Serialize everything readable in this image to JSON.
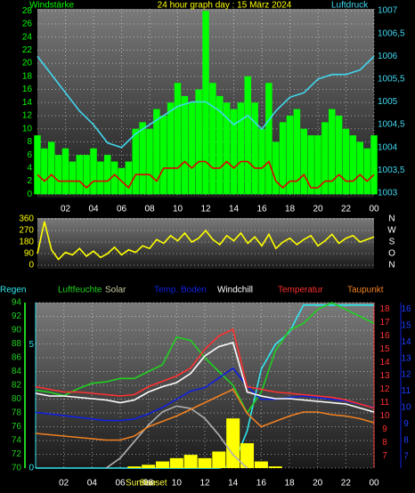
{
  "chart_data": [
    {
      "type": "combo",
      "title": "24 hour graph day : 15 März 2024",
      "grid": true,
      "xlim": [
        0,
        24
      ],
      "xticks": [
        {
          "value": 2,
          "label": "02"
        },
        {
          "value": 4,
          "label": "04"
        },
        {
          "value": 6,
          "label": "06"
        },
        {
          "value": 8,
          "label": "08"
        },
        10,
        12,
        14,
        16,
        18,
        20,
        22,
        {
          "value": 24,
          "label": "00"
        }
      ],
      "ylim": [
        -0.5,
        28.3
      ],
      "yticks": [
        0,
        2,
        4,
        6,
        8,
        10,
        12,
        14,
        16,
        18,
        20,
        22,
        24,
        26,
        28
      ],
      "y2lim": [
        1002.9,
        1007.04
      ],
      "y2ticks": [
        1003,
        {
          "value": 1003.5,
          "label": "1003,5"
        },
        1004,
        {
          "value": 1004.5,
          "label": "1004,5"
        },
        1005,
        {
          "value": 1005.5,
          "label": "1005,5"
        },
        1006,
        {
          "value": 1006.5,
          "label": "1006,5"
        },
        1007
      ],
      "series": [
        {
          "name": "Windstärke",
          "type": "bar",
          "color": "#00ff00",
          "x": [
            0,
            0.5,
            1,
            1.5,
            2,
            2.5,
            3,
            3.5,
            4,
            4.5,
            5,
            5.5,
            6,
            6.5,
            7,
            7.5,
            8,
            8.5,
            9,
            9.5,
            10,
            10.5,
            11,
            11.5,
            12,
            12.5,
            13,
            13.5,
            14,
            14.5,
            15,
            15.5,
            16,
            16.5,
            17,
            17.5,
            18,
            18.5,
            19,
            19.5,
            20,
            20.5,
            21,
            21.5,
            22,
            22.5,
            23,
            23.5,
            24
          ],
          "values": [
            9,
            7,
            8,
            6,
            7,
            5,
            6,
            6,
            7,
            5,
            6,
            5,
            4,
            5,
            10,
            11,
            10,
            13,
            12,
            14,
            17,
            15,
            14,
            16,
            28,
            17,
            15,
            14,
            13,
            14,
            18,
            14,
            10,
            17,
            8,
            11,
            12,
            13,
            10,
            9,
            9,
            11,
            13,
            12,
            10,
            9,
            8,
            7,
            9
          ]
        },
        {
          "type": "line",
          "color": "#e00000",
          "x": [
            0,
            0.5,
            1,
            1.5,
            2,
            2.5,
            3,
            3.5,
            4,
            4.5,
            5,
            5.5,
            6,
            6.5,
            7,
            7.5,
            8,
            8.5,
            9,
            9.5,
            10,
            10.5,
            11,
            11.5,
            12,
            12.5,
            13,
            13.5,
            14,
            14.5,
            15,
            15.5,
            16,
            16.5,
            17,
            17.5,
            18,
            18.5,
            19,
            19.5,
            20,
            20.5,
            21,
            21.5,
            22,
            22.5,
            23,
            23.5,
            24
          ],
          "values": [
            3,
            2,
            3,
            2,
            2,
            2,
            2,
            1,
            2,
            2,
            2,
            3,
            2,
            1,
            3,
            3,
            3,
            2,
            4,
            4,
            4,
            5,
            4,
            5,
            5,
            4,
            4,
            5,
            4,
            5,
            5,
            4,
            4,
            5,
            2,
            1,
            2,
            2,
            3,
            1,
            1,
            2,
            2,
            3,
            2,
            2,
            3,
            2,
            3
          ]
        },
        {
          "name": "Luftdruck",
          "type": "line",
          "axis": "y2",
          "color": "#40d8f0",
          "x": [
            0,
            1,
            2,
            3,
            4,
            5,
            6,
            7,
            8,
            9,
            10,
            11,
            12,
            13,
            14,
            15,
            16,
            17,
            18,
            19,
            20,
            21,
            22,
            23,
            24
          ],
          "values": [
            1006.0,
            1005.6,
            1005.2,
            1004.8,
            1004.5,
            1004.1,
            1004.0,
            1004.3,
            1004.5,
            1004.7,
            1004.9,
            1005.0,
            1005.0,
            1004.8,
            1004.5,
            1004.7,
            1004.4,
            1004.8,
            1005.1,
            1005.2,
            1005.5,
            1005.6,
            1005.6,
            1005.7,
            1006.0
          ]
        }
      ]
    },
    {
      "type": "combo",
      "grid": true,
      "xlim": [
        0,
        24
      ],
      "ylim": [
        0,
        360
      ],
      "yticks": [
        0,
        90,
        180,
        270,
        360
      ],
      "y2ticks": [
        {
          "value": 0,
          "label": "N"
        },
        {
          "value": 90,
          "label": "O"
        },
        {
          "value": 180,
          "label": "S"
        },
        {
          "value": 270,
          "label": "W"
        },
        {
          "value": 360,
          "label": "N"
        }
      ],
      "series": [
        {
          "type": "line",
          "color": "#ffff00",
          "x": [
            0,
            0.5,
            1,
            1.5,
            2,
            2.5,
            3,
            3.5,
            4,
            4.5,
            5,
            5.5,
            6,
            6.5,
            7,
            7.5,
            8,
            8.5,
            9,
            9.5,
            10,
            10.5,
            11,
            11.5,
            12,
            12.5,
            13,
            13.5,
            14,
            14.5,
            15,
            15.5,
            16,
            16.5,
            17,
            17.5,
            18,
            18.5,
            19,
            19.5,
            20,
            20.5,
            21,
            21.5,
            22,
            22.5,
            23,
            23.5,
            24
          ],
          "values": [
            90,
            340,
            120,
            45,
            100,
            80,
            130,
            70,
            110,
            60,
            90,
            140,
            80,
            120,
            100,
            150,
            130,
            200,
            170,
            230,
            190,
            250,
            180,
            210,
            270,
            200,
            160,
            230,
            190,
            250,
            170,
            220,
            150,
            240,
            130,
            180,
            210,
            160,
            200,
            230,
            150,
            190,
            240,
            170,
            210,
            230,
            180,
            200,
            220
          ]
        }
      ]
    },
    {
      "type": "combo",
      "grid": true,
      "xlim": [
        0,
        24
      ],
      "xticks": [
        {
          "value": 2,
          "label": "02"
        },
        {
          "value": 4,
          "label": "04"
        },
        {
          "value": 6,
          "label": "06"
        },
        {
          "value": 8,
          "label": "08"
        },
        10,
        12,
        14,
        16,
        18,
        20,
        22,
        {
          "value": 24,
          "label": "00"
        }
      ],
      "sunrise_label": "Sunrise",
      "sunset_label": "Sunset",
      "ylim": [
        70,
        94
      ],
      "yticks": [
        70,
        72,
        74,
        76,
        78,
        80,
        82,
        84,
        86,
        88,
        90,
        92,
        94
      ],
      "y2lim": [
        6.1,
        18.5
      ],
      "y2ticks": [
        7,
        8,
        9,
        10,
        11,
        12,
        13,
        14,
        15,
        16,
        17,
        18
      ],
      "y3lim": [
        6.3,
        16.4
      ],
      "y3ticks": [
        7,
        8,
        9,
        10,
        11,
        12,
        13,
        14,
        15,
        16
      ],
      "y4lim": [
        0,
        6.7
      ],
      "y4ticks": [
        0,
        5
      ],
      "y5lim": [
        0,
        1000
      ],
      "series": [
        {
          "name": "Regen",
          "type": "line",
          "axis": "y4",
          "color": "#30e8f0",
          "x": [
            0,
            1,
            2,
            3,
            4,
            5,
            6,
            7,
            8,
            9,
            10,
            11,
            12,
            13,
            14,
            15,
            16,
            17,
            18,
            19,
            20,
            21,
            22,
            23,
            24
          ],
          "values": [
            0,
            0,
            0,
            0,
            0,
            0,
            0,
            0,
            0,
            0,
            0,
            0,
            0,
            0,
            0.1,
            1.5,
            4,
            5,
            5.5,
            6.6,
            6.6,
            6.6,
            6.6,
            6.6,
            6.6
          ]
        },
        {
          "name": "Luftfeuchte",
          "type": "line",
          "color": "#20d020",
          "x": [
            0,
            1,
            2,
            3,
            4,
            5,
            6,
            7,
            8,
            9,
            10,
            11,
            12,
            13,
            14,
            15,
            16,
            17,
            18,
            19,
            20,
            21,
            22,
            23,
            24
          ],
          "values": [
            81.3,
            81,
            80.5,
            81.5,
            82.3,
            82.5,
            83,
            83,
            84,
            85,
            89,
            88.5,
            86,
            84,
            82,
            78,
            81,
            87,
            90,
            91,
            93,
            94,
            93,
            92,
            91
          ]
        },
        {
          "name": "Solar",
          "type": "bar",
          "axis": "y5",
          "color": "#ffff00",
          "x": [
            0,
            1,
            2,
            3,
            4,
            5,
            6,
            7,
            8,
            9,
            10,
            11,
            12,
            13,
            14,
            15,
            16,
            17,
            18,
            19,
            20,
            21,
            22,
            23,
            24
          ],
          "values": [
            0,
            0,
            0,
            0,
            0,
            0,
            0,
            10,
            20,
            40,
            60,
            80,
            60,
            100,
            300,
            150,
            40,
            10,
            0,
            0,
            0,
            0,
            0,
            0,
            0
          ]
        },
        {
          "type": "line",
          "axis": "y5",
          "color": "#b0b0b0",
          "x": [
            0,
            1,
            2,
            3,
            4,
            5,
            6,
            7,
            8,
            9,
            10,
            11,
            12,
            13,
            14,
            15,
            16,
            17,
            18,
            19,
            20,
            21,
            22,
            23,
            24
          ],
          "values": [
            null,
            null,
            null,
            null,
            null,
            0,
            60,
            160,
            260,
            340,
            375,
            360,
            300,
            200,
            80,
            0,
            null,
            null,
            null,
            null,
            null,
            null,
            null,
            null,
            null
          ]
        },
        {
          "name": "Temp. Boden",
          "type": "line",
          "axis": "y3",
          "color": "#1020e0",
          "x": [
            0,
            1,
            2,
            3,
            4,
            5,
            6,
            7,
            8,
            9,
            10,
            11,
            12,
            13,
            14,
            15,
            16,
            17,
            18,
            19,
            20,
            21,
            22,
            23,
            24
          ],
          "values": [
            9.7,
            9.6,
            9.5,
            9.4,
            9.3,
            9.2,
            9.2,
            9.3,
            9.6,
            10,
            10.5,
            11,
            11.2,
            11.8,
            12.4,
            11.3,
            10.5,
            10.5,
            10.6,
            10.7,
            10.6,
            10.5,
            10.4,
            10.2,
            10
          ]
        },
        {
          "name": "Windchill",
          "type": "line",
          "axis": "y2",
          "color": "#ffffff",
          "x": [
            0,
            1,
            2,
            3,
            4,
            5,
            6,
            7,
            8,
            9,
            10,
            11,
            12,
            13,
            14,
            15,
            16,
            17,
            18,
            19,
            20,
            21,
            22,
            23,
            24
          ],
          "values": [
            11.7,
            11.5,
            11.5,
            11.4,
            11.3,
            11.2,
            11,
            11.2,
            11.8,
            12.2,
            12.5,
            13.2,
            14.5,
            15.2,
            15.5,
            11.8,
            11.5,
            11.3,
            11.3,
            11.2,
            11.1,
            11,
            10.9,
            10.6,
            10.3
          ]
        },
        {
          "name": "Temperatur",
          "type": "line",
          "axis": "y2",
          "color": "#ff3030",
          "x": [
            0,
            1,
            2,
            3,
            4,
            5,
            6,
            7,
            8,
            9,
            10,
            11,
            12,
            13,
            14,
            15,
            16,
            17,
            18,
            19,
            20,
            21,
            22,
            23,
            24
          ],
          "values": [
            12.2,
            12,
            11.8,
            11.8,
            11.7,
            11.6,
            11.5,
            11.6,
            12.2,
            12.6,
            13,
            13.6,
            15,
            16,
            16.5,
            12.2,
            12,
            11.8,
            11.7,
            11.6,
            11.5,
            11.4,
            11.2,
            10.9,
            10.6
          ]
        },
        {
          "name": "Taupunkt",
          "type": "line",
          "axis": "y2",
          "color": "#f08020",
          "x": [
            0,
            1,
            2,
            3,
            4,
            5,
            6,
            7,
            8,
            9,
            10,
            11,
            12,
            13,
            14,
            15,
            16,
            17,
            18,
            19,
            20,
            21,
            22,
            23,
            24
          ],
          "values": [
            8.7,
            8.6,
            8.5,
            8.4,
            8.3,
            8.2,
            8.2,
            8.5,
            9.2,
            9.6,
            10,
            10.5,
            11,
            11.5,
            12,
            10.2,
            9.2,
            9.6,
            10,
            10.3,
            10.3,
            10.1,
            10,
            9.8,
            9.5
          ]
        }
      ]
    }
  ]
}
